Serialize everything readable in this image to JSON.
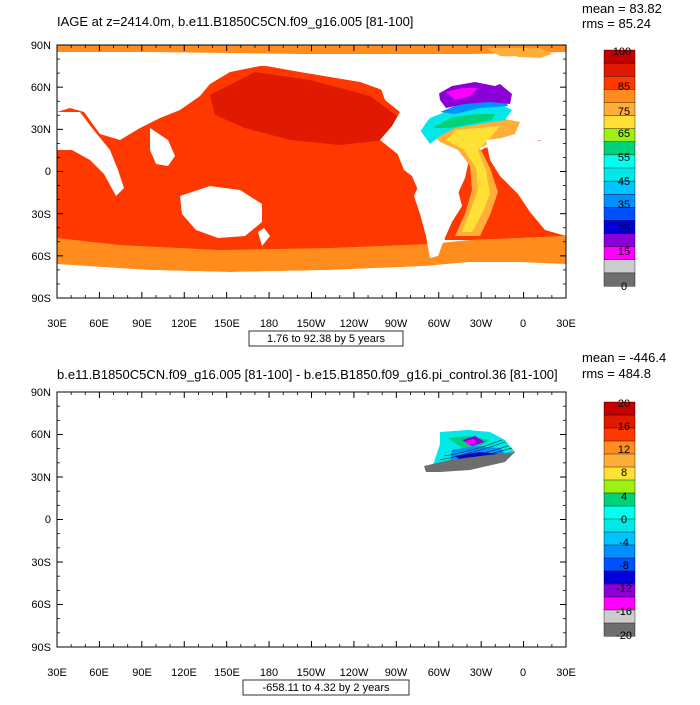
{
  "chart_data": [
    {
      "type": "heatmap",
      "title": "IAGE at z=2414.0m, b.e11.B1850C5CN.f09_g16.005 [81-100]",
      "stats": {
        "mean": "mean = 83.82",
        "rms": "rms = 85.24"
      },
      "contour_info": "1.76 to 92.38 by 5 years",
      "x_ticks": [
        "30E",
        "60E",
        "90E",
        "120E",
        "150E",
        "180",
        "150W",
        "120W",
        "90W",
        "60W",
        "30W",
        "0",
        "30E"
      ],
      "y_ticks": [
        "90N",
        "60N",
        "30N",
        "0",
        "30S",
        "60S",
        "90S"
      ],
      "colorbar": {
        "labels": [
          "100",
          "85",
          "75",
          "65",
          "55",
          "45",
          "35",
          "25",
          "15",
          "0"
        ],
        "colors": [
          "#c40000",
          "#e01a00",
          "#ff3800",
          "#ff8c1c",
          "#ffae38",
          "#ffe034",
          "#9ef014",
          "#00d27a",
          "#00ffee",
          "#00e8e8",
          "#00c4ff",
          "#0091ff",
          "#0050ff",
          "#0000d8",
          "#8c00d8",
          "#ff00ff",
          "#cccccc",
          "#6e6e6e"
        ]
      },
      "xlim": [
        30,
        390
      ],
      "ylim": [
        -90,
        90
      ]
    },
    {
      "type": "heatmap",
      "title": "b.e11.B1850C5CN.f09_g16.005 [81-100] - b.e15.B1850.f09_g16.pi_control.36 [81-100]",
      "stats": {
        "mean": "mean = -446.4",
        "rms": "rms = 484.8"
      },
      "contour_info": "-658.11 to 4.32 by 2 years",
      "x_ticks": [
        "30E",
        "60E",
        "90E",
        "120E",
        "150E",
        "180",
        "150W",
        "120W",
        "90W",
        "60W",
        "30W",
        "0",
        "30E"
      ],
      "y_ticks": [
        "90N",
        "60N",
        "30N",
        "0",
        "30S",
        "60S",
        "90S"
      ],
      "colorbar": {
        "labels": [
          "20",
          "16",
          "12",
          "8",
          "4",
          "0",
          "-4",
          "-8",
          "-12",
          "-16",
          "-20"
        ],
        "colors": [
          "#c40000",
          "#e01a00",
          "#ff3800",
          "#ff8c1c",
          "#ffae38",
          "#ffe034",
          "#9ef014",
          "#00d27a",
          "#00ffee",
          "#00e8e8",
          "#00c4ff",
          "#0091ff",
          "#0050ff",
          "#0000d8",
          "#8c00d8",
          "#ff00ff",
          "#cccccc",
          "#6e6e6e"
        ]
      },
      "xlim": [
        30,
        390
      ],
      "ylim": [
        -90,
        90
      ]
    }
  ]
}
